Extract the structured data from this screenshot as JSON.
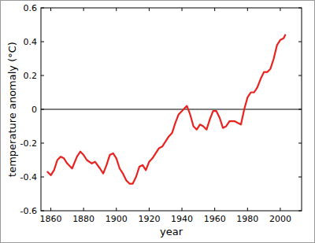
{
  "chart_data": {
    "type": "line",
    "x_label": "year",
    "y_label": "temperature anomaly (°C)",
    "x": [
      1858,
      1860,
      1862,
      1864,
      1866,
      1868,
      1870,
      1873,
      1876,
      1878,
      1880,
      1882,
      1885,
      1887,
      1890,
      1892,
      1894,
      1896,
      1898,
      1900,
      1902,
      1904,
      1906,
      1908,
      1910,
      1912,
      1914,
      1916,
      1918,
      1920,
      1922,
      1924,
      1926,
      1928,
      1930,
      1932,
      1934,
      1936,
      1938,
      1940,
      1942,
      1943,
      1945,
      1947,
      1949,
      1951,
      1953,
      1955,
      1957,
      1959,
      1961,
      1963,
      1965,
      1967,
      1969,
      1972,
      1974,
      1976,
      1978,
      1980,
      1982,
      1984,
      1986,
      1988,
      1990,
      1992,
      1994,
      1996,
      1998,
      2000,
      2002,
      2003
    ],
    "series": [
      {
        "color": "#e8221e",
        "values": [
          -0.37,
          -0.39,
          -0.36,
          -0.3,
          -0.28,
          -0.29,
          -0.32,
          -0.35,
          -0.28,
          -0.25,
          -0.27,
          -0.3,
          -0.32,
          -0.31,
          -0.35,
          -0.38,
          -0.33,
          -0.27,
          -0.26,
          -0.29,
          -0.35,
          -0.38,
          -0.42,
          -0.44,
          -0.44,
          -0.4,
          -0.34,
          -0.33,
          -0.36,
          -0.31,
          -0.29,
          -0.26,
          -0.23,
          -0.22,
          -0.19,
          -0.16,
          -0.14,
          -0.08,
          -0.03,
          -0.01,
          0.01,
          0.02,
          -0.03,
          -0.1,
          -0.12,
          -0.09,
          -0.1,
          -0.12,
          -0.06,
          -0.01,
          -0.01,
          -0.05,
          -0.11,
          -0.1,
          -0.07,
          -0.07,
          -0.08,
          -0.09,
          0.0,
          0.07,
          0.1,
          0.1,
          0.13,
          0.18,
          0.22,
          0.22,
          0.24,
          0.3,
          0.38,
          0.41,
          0.42,
          0.44
        ]
      }
    ],
    "xlim": [
      1854,
      2013
    ],
    "ylim": [
      -0.6,
      0.6
    ],
    "xticks": [
      1860,
      1880,
      1900,
      1920,
      1940,
      1960,
      1980,
      2000
    ],
    "yticks": [
      -0.6,
      -0.4,
      -0.2,
      0,
      0.2,
      0.4,
      0.6
    ],
    "reference_lines": [
      0
    ],
    "grid": false
  }
}
